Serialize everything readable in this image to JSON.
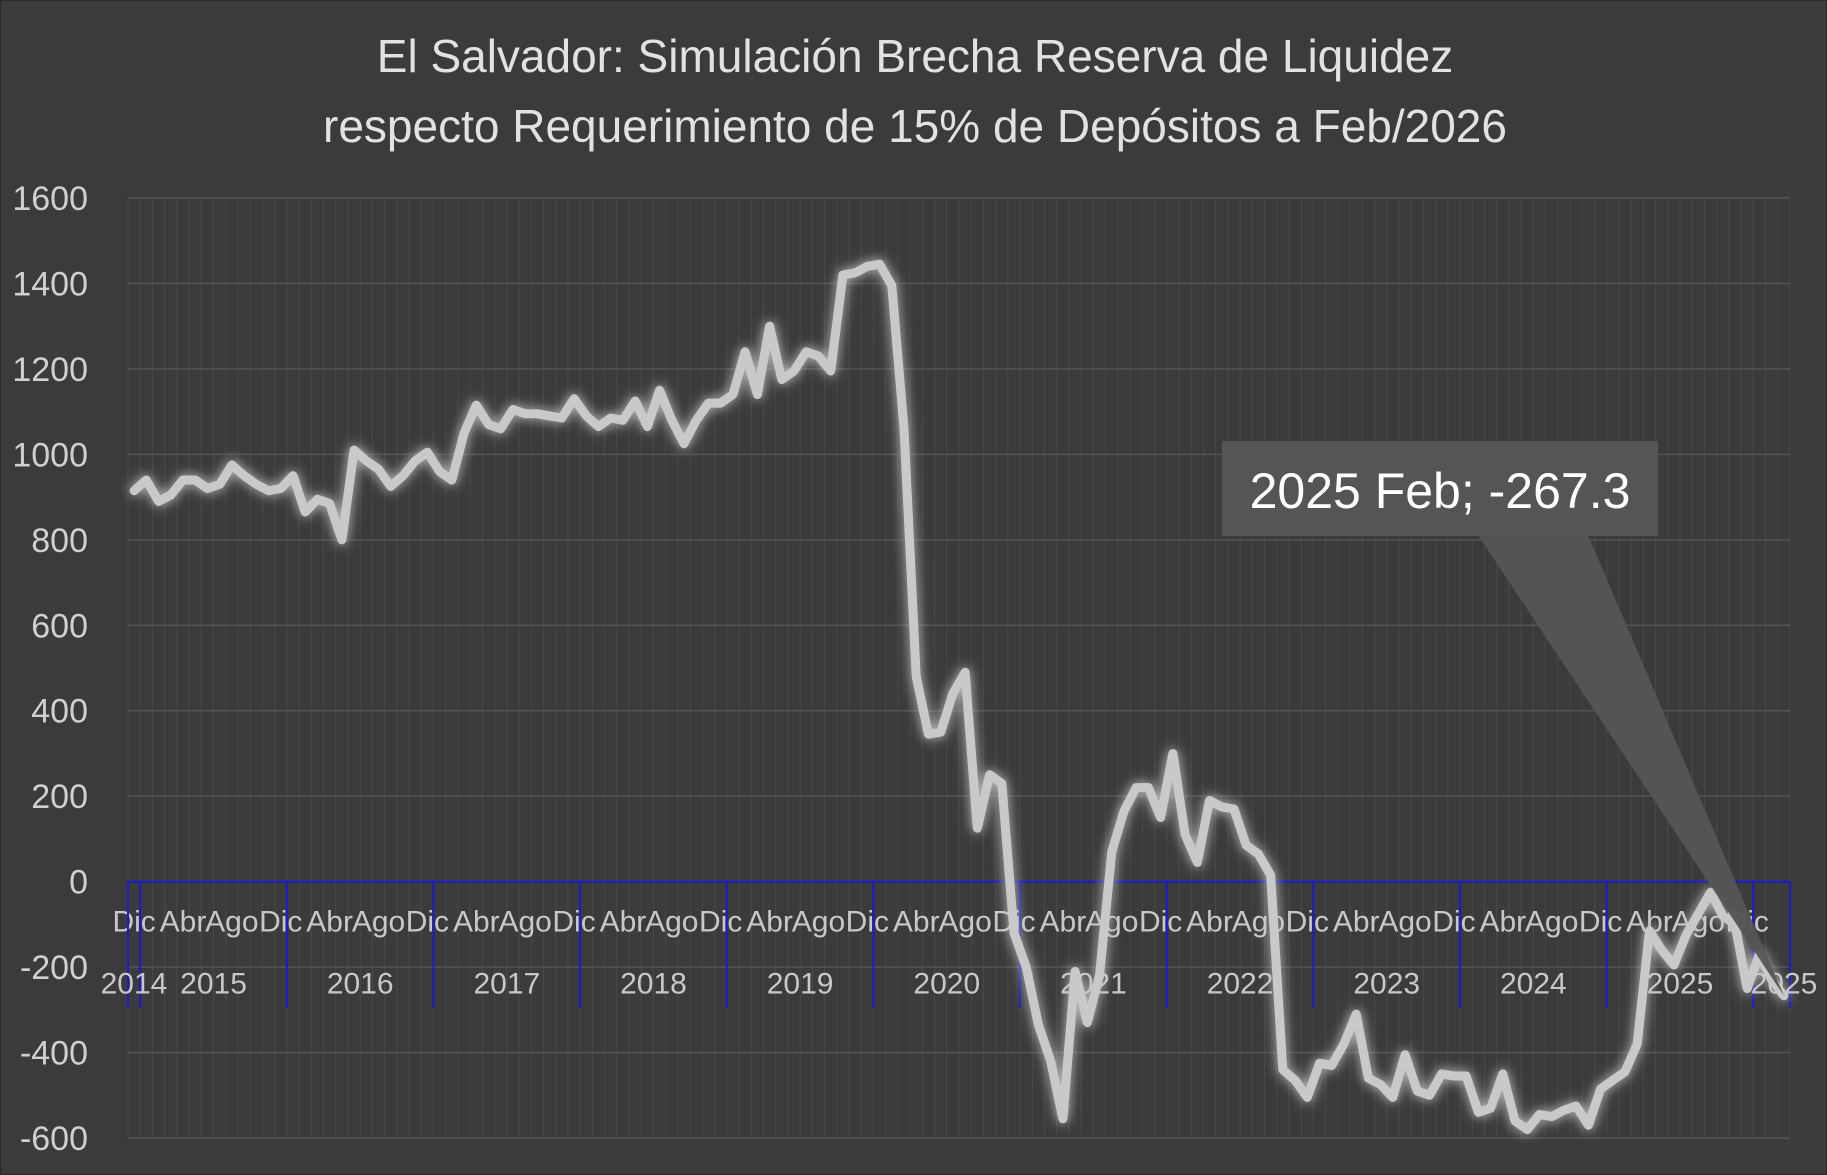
{
  "chart_data": {
    "type": "line",
    "title": "El Salvador: Simulación Brecha Reserva de Liquidez",
    "subtitle": "respecto Requerimiento de 15% de Depósitos a Feb/2026",
    "xlabel": "",
    "ylabel": "",
    "ylim": [
      -600,
      1600
    ],
    "yticks": [
      1600,
      1400,
      1200,
      1000,
      800,
      600,
      400,
      200,
      0,
      -200,
      -400,
      -600
    ],
    "grid": true,
    "legend": "none",
    "colors": {
      "background": "#3b3b3b",
      "line": "#c9c9c9",
      "axis": "#1a1ad0",
      "grid": "#555555",
      "callout": "#555555"
    },
    "month_ticks": [
      "Dic",
      "Abr",
      "Ago",
      "Dic",
      "Abr",
      "Ago",
      "Dic",
      "Abr",
      "Ago",
      "Dic",
      "Abr",
      "Ago",
      "Dic",
      "Abr",
      "Ago",
      "Dic",
      "Abr",
      "Ago",
      "Dic",
      "Abr",
      "Ago",
      "Dic",
      "Abr",
      "Ago",
      "Dic",
      "Abr",
      "Ago",
      "Dic",
      "Abr",
      "Ago",
      "Dic",
      "Abr",
      "Ago",
      "Dic"
    ],
    "year_labels": [
      "2014",
      "2015",
      "2016",
      "2017",
      "2018",
      "2019",
      "2020",
      "2021",
      "2022",
      "2023",
      "2024",
      "2025",
      "2025"
    ],
    "annotation": {
      "label": "2025 Feb; -267.3",
      "value": -267.3
    },
    "series": [
      {
        "values": [
          915,
          940,
          890,
          905,
          940,
          940,
          920,
          930,
          975,
          950,
          930,
          915,
          920,
          950,
          865,
          895,
          885,
          800,
          1010,
          985,
          965,
          925,
          950,
          985,
          1005,
          960,
          940,
          1050,
          1115,
          1070,
          1060,
          1105,
          1095,
          1095,
          1090,
          1085,
          1130,
          1090,
          1065,
          1085,
          1080,
          1125,
          1065,
          1150,
          1080,
          1025,
          1080,
          1120,
          1120,
          1140,
          1240,
          1140,
          1300,
          1175,
          1195,
          1240,
          1230,
          1195,
          1420,
          1425,
          1440,
          1445,
          1395,
          1060,
          480,
          345,
          350,
          440,
          490,
          125,
          250,
          230,
          -120,
          -200,
          -335,
          -420,
          -555,
          -210,
          -330,
          -220,
          70,
          165,
          220,
          220,
          150,
          300,
          110,
          45,
          190,
          175,
          170,
          85,
          65,
          15,
          -440,
          -465,
          -505,
          -425,
          -430,
          -380,
          -310,
          -460,
          -475,
          -505,
          -405,
          -490,
          -500,
          -450,
          -455,
          -455,
          -540,
          -530,
          -450,
          -560,
          -580,
          -545,
          -550,
          -535,
          -525,
          -570,
          -485,
          -465,
          -445,
          -380,
          -115,
          -160,
          -195,
          -125,
          -75,
          -25,
          -80,
          -100,
          -250,
          -170,
          -230,
          -267.3
        ]
      }
    ]
  }
}
